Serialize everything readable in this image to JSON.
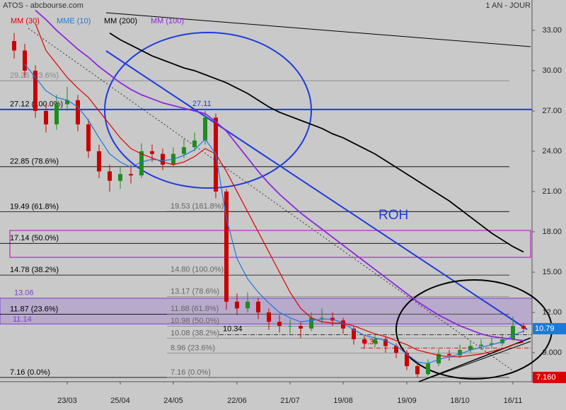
{
  "chart_data": {
    "type": "candlestick",
    "title": "ATOS - abcbourse.com",
    "subtitle": "1 AN - JOUR",
    "categories": [
      null,
      null,
      null,
      null,
      null,
      "23/03",
      null,
      null,
      null,
      null,
      "25/04",
      null,
      null,
      null,
      null,
      "24/05",
      null,
      null,
      null,
      null,
      null,
      "22/06",
      null,
      null,
      null,
      null,
      "21/07",
      null,
      null,
      null,
      null,
      "19/08",
      null,
      null,
      null,
      null,
      null,
      "19/09",
      null,
      null,
      null,
      null,
      "18/10",
      null,
      null,
      null,
      null,
      "16/11",
      null
    ],
    "open": [
      32.2,
      31.5,
      30,
      27,
      26,
      27.5,
      27.8,
      26,
      24,
      22.5,
      21.8,
      22.3,
      22.2,
      24,
      23.8,
      23,
      23.8,
      24.3,
      24.8,
      26.5,
      21,
      12.8,
      12.3,
      12.8,
      12,
      11.3,
      11,
      11,
      10.8,
      11.6,
      11.6,
      11.4,
      10.8,
      10,
      9.7,
      10,
      9.5,
      9,
      8,
      7.4,
      8.2,
      8.9,
      8.8,
      9.2,
      9.5,
      9.6,
      9.7,
      10,
      11
    ],
    "high": [
      32.8,
      32,
      30.4,
      27.5,
      28.2,
      28.8,
      28.2,
      26.4,
      24.5,
      23,
      22.8,
      23,
      24.6,
      24.5,
      24.2,
      24.3,
      24.9,
      25.4,
      27,
      26.8,
      21.2,
      13.4,
      13.5,
      13.1,
      12.3,
      11.8,
      11.5,
      11.3,
      12,
      12.3,
      12,
      11.6,
      11,
      10.3,
      10.4,
      10.2,
      9.7,
      9.2,
      8.3,
      8.5,
      9.3,
      9.2,
      9.6,
      9.9,
      10,
      10.1,
      10.4,
      11.7,
      11.2
    ],
    "low": [
      30.9,
      29.5,
      26.5,
      25.4,
      25.6,
      27,
      25.5,
      23.5,
      22,
      21,
      21.2,
      21.6,
      22,
      23.2,
      22.6,
      22.8,
      23.5,
      24,
      24.5,
      20.5,
      12.2,
      11.8,
      12,
      11.5,
      10.7,
      10.5,
      10.4,
      10.1,
      10.6,
      11.2,
      11,
      10.4,
      9.6,
      9.3,
      9.4,
      9,
      8.6,
      7.7,
      7.16,
      7.3,
      8,
      8.4,
      8.6,
      9,
      9.2,
      9.3,
      9.5,
      9.9,
      10.5
    ],
    "close": [
      31.5,
      30,
      27,
      26,
      27.5,
      27.8,
      26,
      24,
      22.5,
      21.8,
      22.3,
      22.2,
      24,
      23.8,
      23,
      23.8,
      24.3,
      24.8,
      26.5,
      21,
      12.8,
      12.3,
      12.8,
      12,
      11.3,
      11,
      11,
      10.8,
      11.6,
      11.6,
      11.4,
      10.8,
      10,
      9.7,
      10,
      9.5,
      9,
      8,
      7.4,
      8.2,
      8.9,
      8.8,
      9.2,
      9.5,
      9.6,
      9.7,
      10,
      11,
      10.79
    ],
    "up_color": "#1e8c1e",
    "down_color": "#c80000",
    "series": [
      {
        "name": "MM (30)",
        "color": "#e00000",
        "values": [
          null,
          null,
          33.5,
          31.5,
          30.5,
          29.5,
          28.7,
          28,
          27,
          26,
          25,
          24.2,
          23.8,
          23.5,
          23.2,
          23,
          23.2,
          23.6,
          24.2,
          23.8,
          22.5,
          21,
          19.5,
          18,
          16.5,
          15,
          13.5,
          12.3,
          11.6,
          11.3,
          11.2,
          11.2,
          11,
          10.7,
          10.4,
          10.2,
          9.9,
          9.6,
          9.2,
          9,
          8.8,
          8.7,
          8.7,
          8.8,
          8.9,
          9.1,
          9.3,
          9.6,
          9.8
        ]
      },
      {
        "name": "MME (10)",
        "color": "#1e78dc",
        "values": [
          null,
          30.5,
          29.5,
          28.5,
          28,
          27.8,
          27.3,
          26.3,
          25,
          23.8,
          23.2,
          22.8,
          23.2,
          23.4,
          23.3,
          23.4,
          23.7,
          24.1,
          24.9,
          23.8,
          19,
          16,
          14.5,
          13.5,
          12.7,
          12,
          11.6,
          11.3,
          11.4,
          11.5,
          11.5,
          11.2,
          10.7,
          10.3,
          10.1,
          9.9,
          9.5,
          8.9,
          8.3,
          8.2,
          8.5,
          8.7,
          8.9,
          9.2,
          9.4,
          9.6,
          9.8,
          10.3,
          10.6
        ]
      },
      {
        "name": "MM (200)",
        "color": "#000000",
        "values": [
          null,
          null,
          null,
          null,
          null,
          null,
          null,
          null,
          null,
          32.8,
          32.3,
          31.9,
          31.5,
          31.1,
          30.8,
          30.5,
          30.2,
          30,
          29.7,
          29.4,
          29.1,
          28.7,
          28.3,
          27.8,
          27.3,
          26.9,
          26.6,
          26.3,
          26,
          25.7,
          25.3,
          25,
          24.6,
          24.2,
          23.8,
          23.3,
          22.8,
          22.3,
          21.8,
          21.3,
          20.8,
          20.3,
          19.7,
          19.1,
          18.5,
          17.9,
          17.4,
          16.9,
          16.5
        ]
      },
      {
        "name": "MM (100)",
        "color": "#8c28dc",
        "values": [
          null,
          null,
          34.5,
          33.8,
          33,
          32.3,
          31.6,
          31,
          30.3,
          29.7,
          29.1,
          28.6,
          28.2,
          27.9,
          27.6,
          27.4,
          27.2,
          27,
          26.8,
          26.2,
          25.5,
          24.5,
          23.5,
          22.5,
          21.6,
          20.8,
          20.1,
          19.4,
          18.8,
          18.2,
          17.6,
          17,
          16.4,
          15.8,
          15.2,
          14.6,
          14,
          13.4,
          12.8,
          12.3,
          11.8,
          11.4,
          11,
          10.7,
          10.4,
          10.2,
          10.1,
          10,
          9.9
        ]
      }
    ],
    "ylim": [
      6.84,
      35.26
    ],
    "yticks": [
      {
        "value": 33,
        "label": "33.00"
      },
      {
        "value": 30,
        "label": "30.00"
      },
      {
        "value": 27,
        "label": "27.00"
      },
      {
        "value": 24,
        "label": "24.00"
      },
      {
        "value": 21,
        "label": "21.00"
      },
      {
        "value": 18,
        "label": "18.00"
      },
      {
        "value": 15,
        "label": "15.00"
      },
      {
        "value": 12,
        "label": "12.00"
      },
      {
        "value": 9,
        "label": "9.000"
      }
    ],
    "levels": [
      {
        "value": 29.25,
        "label": "29.25 (23.6%)",
        "color": "#888888"
      },
      {
        "value": 27.12,
        "label": "27.12 (100.0%)",
        "color": "#000000"
      },
      {
        "value": 22.85,
        "label": "22.85 (78.6%)",
        "color": "#000000"
      },
      {
        "value": 19.49,
        "label": "19.49 (61.8%)",
        "color": "#000000"
      },
      {
        "value": 17.14,
        "label": "17.14 (50.0%)",
        "color": "#000000"
      },
      {
        "value": 14.78,
        "label": "14.78 (38.2%)",
        "color": "#000000"
      },
      {
        "value": 11.87,
        "label": "11.87 (23.6%)",
        "color": "#000000"
      },
      {
        "value": 7.16,
        "label": "7.16 (0.0%)",
        "color": "#000000"
      }
    ],
    "extensions": [
      {
        "value": 19.53,
        "label": "19.53 (161.8%)"
      },
      {
        "value": 14.8,
        "label": "14.80 (100.0%)"
      },
      {
        "value": 13.17,
        "label": "13.17 (78.6%)"
      },
      {
        "value": 11.88,
        "label": "11.88 (61.8%)"
      },
      {
        "value": 10.98,
        "label": "10.98 (50.0%)"
      },
      {
        "value": 10.08,
        "label": "10.08 (38.2%)"
      },
      {
        "value": 8.96,
        "label": "8.96 (23.6%)"
      },
      {
        "value": 7.16,
        "label": "7.16 (0.0%)"
      }
    ],
    "zone": [
      11.14,
      13.06
    ],
    "zone_color": "#7a3cd2",
    "resistance": 27.11,
    "annotations": [
      {
        "value": 10.34,
        "color": "#000000"
      },
      {
        "value": 9.35,
        "color": "#d00000"
      }
    ],
    "label_roh": "ROH",
    "last": 10.79,
    "low_mark": {
      "value": 7.16,
      "label": "7.160"
    }
  }
}
